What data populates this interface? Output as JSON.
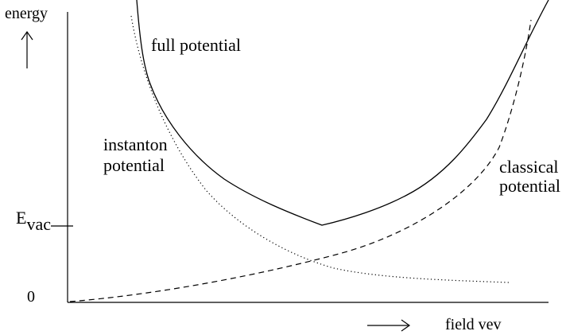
{
  "diagram": {
    "y_axis_label": "energy",
    "x_axis_label": "field vev",
    "evac_label_main": "E",
    "evac_label_sub": "vac",
    "zero_label": "0",
    "curves": [
      {
        "id": "full",
        "label": "full potential",
        "style": "solid"
      },
      {
        "id": "instanton",
        "label_line1": "instanton",
        "label_line2": "potential",
        "style": "dotted"
      },
      {
        "id": "classical",
        "label_line1": "classical",
        "label_line2": "potential",
        "style": "dashed"
      }
    ],
    "colors": {
      "ink": "#000000",
      "background": "#ffffff"
    }
  }
}
